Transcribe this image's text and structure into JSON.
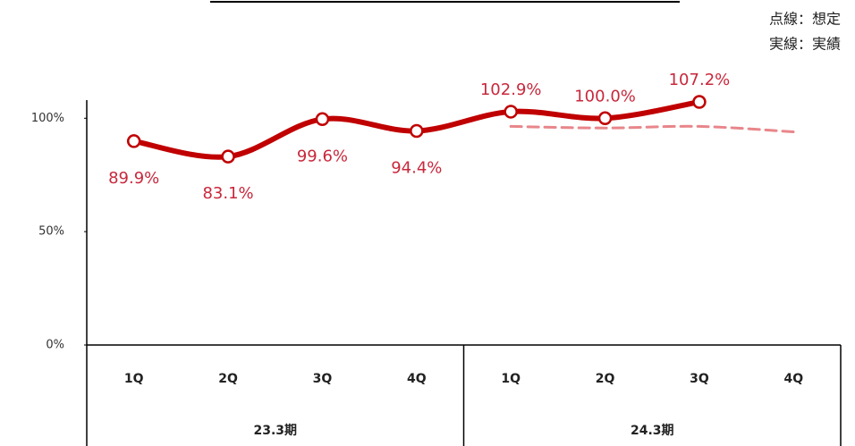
{
  "chart_data": {
    "type": "line",
    "legend": [
      "点線：想定",
      "実線：実績"
    ],
    "categories": [
      "1Q",
      "2Q",
      "3Q",
      "4Q",
      "1Q",
      "2Q",
      "3Q",
      "4Q"
    ],
    "groups": [
      {
        "label": "23.3期",
        "span": 4
      },
      {
        "label": "24.3期",
        "span": 4
      }
    ],
    "series": [
      {
        "name": "実績",
        "color": "#c00000",
        "style": "solid",
        "values": [
          89.9,
          83.1,
          99.6,
          94.4,
          102.9,
          100.0,
          107.2,
          null
        ],
        "value_labels": [
          "89.9%",
          "83.1%",
          "99.6%",
          "94.4%",
          "102.9%",
          "100.0%",
          "107.2%",
          null
        ]
      },
      {
        "name": "想定",
        "color": "#e8868a",
        "style": "dashed",
        "values": [
          null,
          null,
          null,
          null,
          96.4,
          95.7,
          96.4,
          94.0
        ]
      }
    ],
    "ylim": [
      0,
      108
    ],
    "yticks": [
      {
        "value": 0,
        "label": "0%"
      },
      {
        "value": 50,
        "label": "50%"
      },
      {
        "value": 100,
        "label": "100%"
      }
    ],
    "grid": false
  }
}
